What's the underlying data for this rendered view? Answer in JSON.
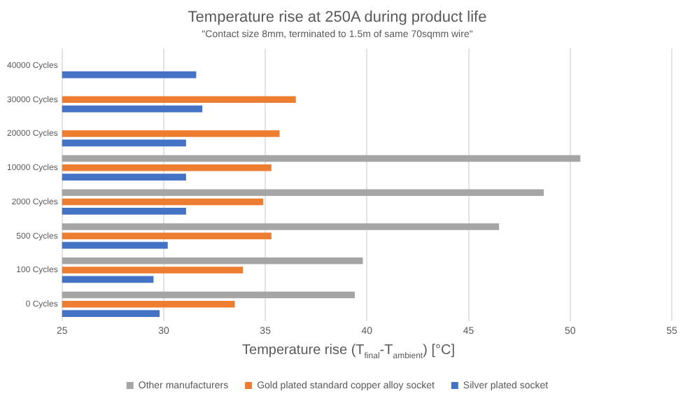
{
  "chart_data": {
    "type": "bar",
    "orientation": "horizontal",
    "title": "Temperature rise at 250A during product life",
    "subtitle": "\"Contact size 8mm, terminated to 1.5m of same 70sqmm wire\"",
    "xlabel": "Temperature rise (T$_{final}$-T$_{ambient}$) [°C]",
    "categories": [
      "40000 Cycles",
      "30000 Cycles",
      "20000 Cycles",
      "10000 Cycles",
      "2000 Cycles",
      "500 Cycles",
      "100 Cycles",
      "0 Cycles"
    ],
    "series": [
      {
        "name": "Other manufacturers",
        "color": "#a5a5a5",
        "values": [
          null,
          null,
          null,
          50.5,
          48.7,
          46.5,
          39.8,
          39.4
        ]
      },
      {
        "name": "Gold plated standard copper alloy socket",
        "color": "#ed7d31",
        "values": [
          null,
          36.5,
          35.7,
          35.3,
          34.9,
          35.3,
          33.9,
          33.5
        ]
      },
      {
        "name": "Silver plated socket",
        "color": "#4472c4",
        "values": [
          31.6,
          31.9,
          31.1,
          31.1,
          31.1,
          30.2,
          29.5,
          29.8
        ]
      }
    ],
    "xlim": [
      25,
      55
    ],
    "xticks": [
      25,
      30,
      35,
      40,
      45,
      50,
      55
    ],
    "grid": "x",
    "legend": "bottom"
  }
}
